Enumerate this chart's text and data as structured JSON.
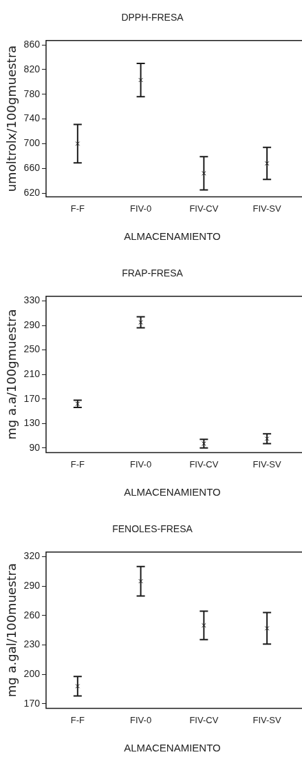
{
  "chart_data": [
    {
      "type": "scatter",
      "title": "DPPH-FRESA",
      "xlabel": "ALMACENAMIENTO",
      "ylabel": "umoltrolx/100gmuestra",
      "categories": [
        "F-F",
        "FIV-0",
        "FIV-CV",
        "FIV-SV"
      ],
      "values": [
        700,
        803,
        652,
        668
      ],
      "errors": [
        31,
        27,
        27,
        26
      ],
      "color": "#1a1a1a",
      "marker": "cross",
      "ylim": [
        614,
        867
      ],
      "yticks": [
        620,
        660,
        700,
        740,
        780,
        820,
        860
      ],
      "legend": false,
      "grid": false
    },
    {
      "type": "scatter",
      "title": "FRAP-FRESA",
      "xlabel": "ALMACENAMIENTO",
      "ylabel": "mg a.a/100gmuestra",
      "categories": [
        "F-F",
        "FIV-0",
        "FIV-CV",
        "FIV-SV"
      ],
      "values": [
        162,
        295,
        97,
        105
      ],
      "errors": [
        6,
        9,
        7,
        8
      ],
      "color": "#1a1a1a",
      "marker": "cross",
      "ylim": [
        82.5,
        337.5
      ],
      "yticks": [
        90,
        130,
        170,
        210,
        250,
        290,
        330
      ],
      "legend": false,
      "grid": false
    },
    {
      "type": "scatter",
      "title": "FENOLES-FRESA",
      "xlabel": "ALMACENAMIENTO",
      "ylabel": "mg a.gal/100muestra",
      "categories": [
        "F-F",
        "FIV-0",
        "FIV-CV",
        "FIV-SV"
      ],
      "values": [
        188,
        295,
        250,
        247
      ],
      "errors": [
        10,
        15,
        14.5,
        16
      ],
      "color": "#1a1a1a",
      "marker": "cross",
      "ylim": [
        165.5,
        324.7
      ],
      "yticks": [
        170,
        200,
        230,
        260,
        290,
        320
      ],
      "legend": false,
      "grid": false
    }
  ]
}
